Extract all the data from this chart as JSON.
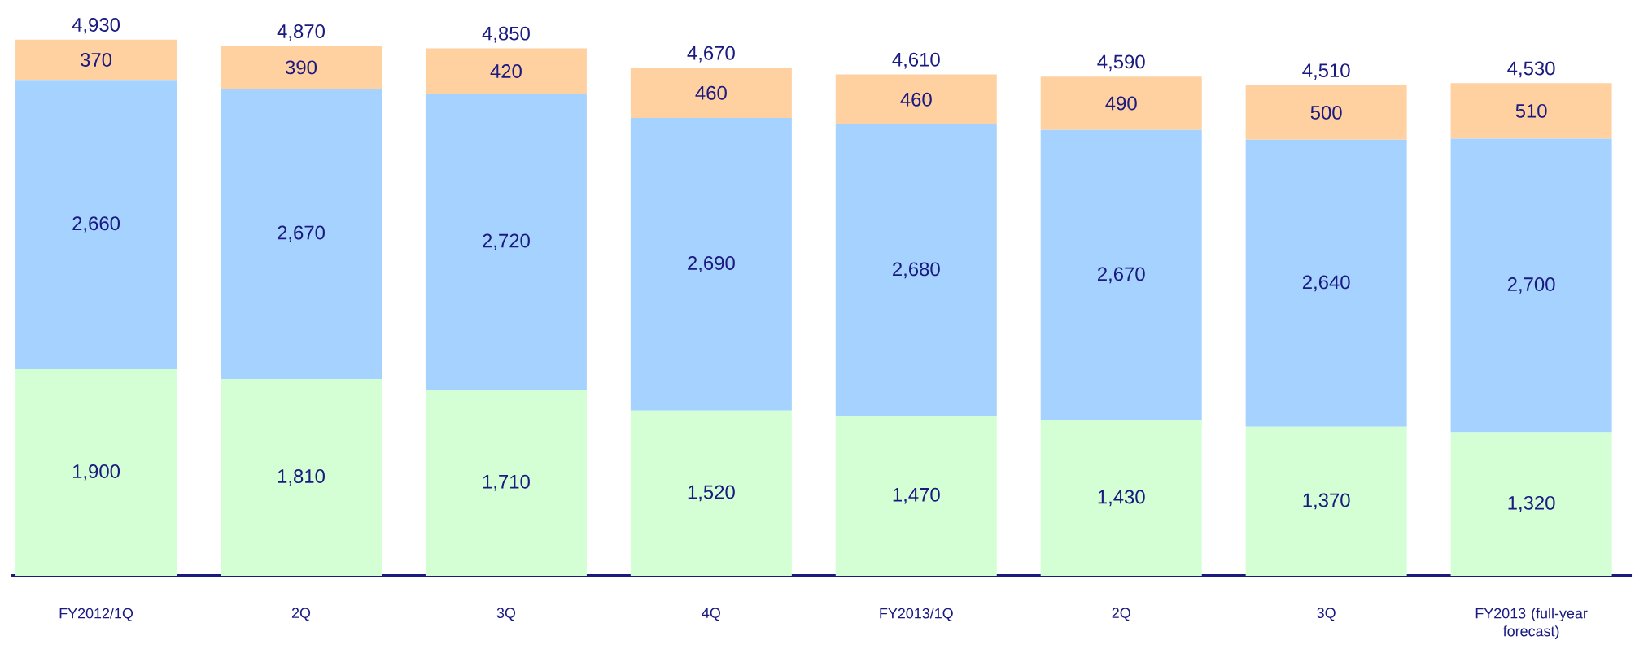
{
  "chart_data": {
    "type": "bar",
    "stacked": true,
    "categories": [
      "FY2012/1Q",
      "2Q",
      "3Q",
      "4Q",
      "FY2013/1Q",
      "2Q",
      "3Q",
      "FY2013 (full-year forecast)"
    ],
    "series": [
      {
        "color": "#d4ffd4",
        "values": [
          1900,
          1810,
          1710,
          1520,
          1470,
          1430,
          1370,
          1320
        ],
        "value_labels": [
          "1,900",
          "1,810",
          "1,710",
          "1,520",
          "1,470",
          "1,430",
          "1,370",
          "1,320"
        ]
      },
      {
        "color": "#a6d2ff",
        "values": [
          2660,
          2670,
          2720,
          2690,
          2680,
          2670,
          2640,
          2700
        ],
        "value_labels": [
          "2,660",
          "2,670",
          "2,720",
          "2,690",
          "2,680",
          "2,670",
          "2,640",
          "2,700"
        ]
      },
      {
        "color": "#ffd0a0",
        "values": [
          370,
          390,
          420,
          460,
          460,
          490,
          500,
          510
        ],
        "value_labels": [
          "370",
          "390",
          "420",
          "460",
          "460",
          "490",
          "500",
          "510"
        ]
      }
    ],
    "totals": [
      "4,930",
      "4,870",
      "4,850",
      "4,670",
      "4,610",
      "4,590",
      "4,510",
      "4,530"
    ]
  }
}
